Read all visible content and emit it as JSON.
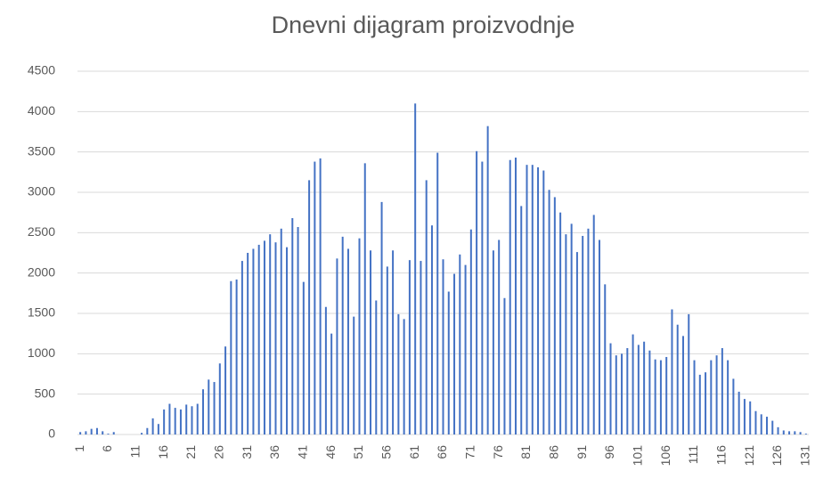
{
  "chart_data": {
    "type": "bar",
    "title": "Dnevni dijagram proizvodnje",
    "categories": [
      "1",
      null,
      null,
      null,
      null,
      "6",
      null,
      null,
      null,
      null,
      "11",
      null,
      null,
      null,
      null,
      "16",
      null,
      null,
      null,
      null,
      "21",
      null,
      null,
      null,
      null,
      "26",
      null,
      null,
      null,
      null,
      "31",
      null,
      null,
      null,
      null,
      "36",
      null,
      null,
      null,
      null,
      "41",
      null,
      null,
      null,
      null,
      "46",
      null,
      null,
      null,
      null,
      "51",
      null,
      null,
      null,
      null,
      "56",
      null,
      null,
      null,
      null,
      "61",
      null,
      null,
      null,
      null,
      "66",
      null,
      null,
      null,
      null,
      "71",
      null,
      null,
      null,
      null,
      "76",
      null,
      null,
      null,
      null,
      "81",
      null,
      null,
      null,
      null,
      "86",
      null,
      null,
      null,
      null,
      "91",
      null,
      null,
      null,
      null,
      "96",
      null,
      null,
      null,
      null,
      "101",
      null,
      null,
      null,
      null,
      "106",
      null,
      null,
      null,
      null,
      "111",
      null,
      null,
      null,
      null,
      "116",
      null,
      null,
      null,
      null,
      "121",
      null,
      null,
      null,
      null,
      "126",
      null,
      null,
      null,
      null,
      "131"
    ],
    "values": [
      30,
      40,
      70,
      80,
      40,
      10,
      30,
      0,
      0,
      0,
      0,
      20,
      80,
      200,
      130,
      310,
      380,
      330,
      310,
      370,
      350,
      380,
      560,
      680,
      650,
      880,
      1090,
      1900,
      1920,
      2150,
      2250,
      2300,
      2350,
      2400,
      2480,
      2380,
      2550,
      2320,
      2680,
      2570,
      1890,
      3150,
      3380,
      3420,
      1580,
      1250,
      2180,
      2450,
      2300,
      1460,
      2430,
      3360,
      2280,
      1660,
      2880,
      2080,
      2280,
      1490,
      1430,
      2160,
      4100,
      2150,
      3150,
      2590,
      3490,
      2170,
      1770,
      1990,
      2230,
      2100,
      2540,
      3510,
      3380,
      3820,
      2280,
      2410,
      1690,
      3400,
      3430,
      2830,
      3340,
      3340,
      3310,
      3270,
      3030,
      2940,
      2750,
      2480,
      2610,
      2260,
      2460,
      2550,
      2720,
      2410,
      1860,
      1130,
      980,
      1000,
      1070,
      1240,
      1110,
      1150,
      1040,
      930,
      920,
      960,
      1550,
      1360,
      1220,
      1490,
      920,
      740,
      770,
      920,
      980,
      1070,
      920,
      690,
      530,
      440,
      410,
      290,
      250,
      220,
      170,
      90,
      50,
      40,
      40,
      30,
      10
    ],
    "color": "#4472c4",
    "ylim": [
      0,
      4500
    ],
    "yticks": [
      0,
      500,
      1000,
      1500,
      2000,
      2500,
      3000,
      3500,
      4000,
      4500
    ],
    "grid": true
  }
}
